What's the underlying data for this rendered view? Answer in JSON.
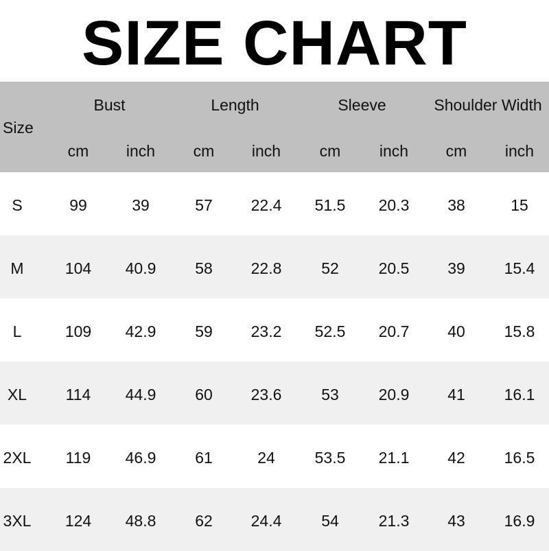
{
  "title": "SIZE CHART",
  "header": {
    "size_label": "Size",
    "groups": [
      "Bust",
      "Length",
      "Sleeve",
      "Shoulder Width"
    ],
    "units": [
      "cm",
      "inch",
      "cm",
      "inch",
      "cm",
      "inch",
      "cm",
      "inch"
    ]
  },
  "rows": [
    {
      "size": "S",
      "values": [
        "99",
        "39",
        "57",
        "22.4",
        "51.5",
        "20.3",
        "38",
        "15"
      ]
    },
    {
      "size": "M",
      "values": [
        "104",
        "40.9",
        "58",
        "22.8",
        "52",
        "20.5",
        "39",
        "15.4"
      ]
    },
    {
      "size": "L",
      "values": [
        "109",
        "42.9",
        "59",
        "23.2",
        "52.5",
        "20.7",
        "40",
        "15.8"
      ]
    },
    {
      "size": "XL",
      "values": [
        "114",
        "44.9",
        "60",
        "23.6",
        "53",
        "20.9",
        "41",
        "16.1"
      ]
    },
    {
      "size": "2XL",
      "values": [
        "119",
        "46.9",
        "61",
        "24",
        "53.5",
        "21.1",
        "42",
        "16.5"
      ]
    },
    {
      "size": "3XL",
      "values": [
        "124",
        "48.8",
        "62",
        "24.4",
        "54",
        "21.3",
        "43",
        "16.9"
      ]
    }
  ],
  "colors": {
    "header_bg": "#c0c0c0",
    "alt_row_bg": "#f0f0f0"
  }
}
